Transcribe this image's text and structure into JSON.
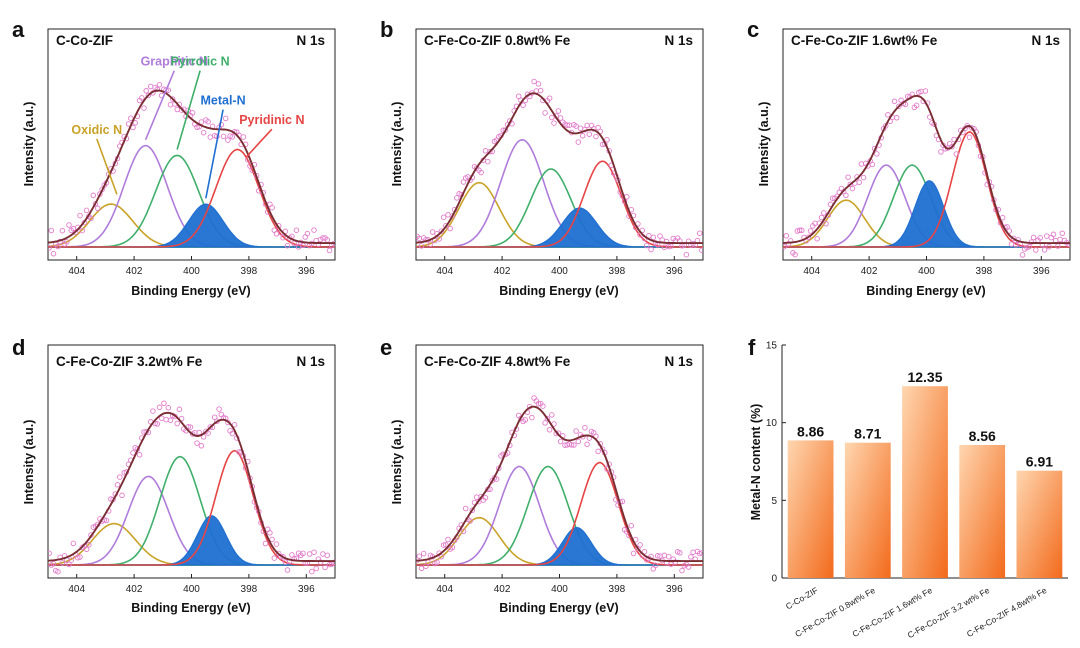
{
  "chart_data": [
    {
      "id": "a",
      "type": "line",
      "panel_label": "a",
      "title": "C-Co-ZIF",
      "tag": "N 1s",
      "xlabel": "Binding Energy (eV)",
      "ylabel": "Intensity (a.u.)",
      "xlim": [
        405,
        395
      ],
      "x_ticks": [
        404,
        402,
        400,
        398,
        396
      ],
      "ylim": [
        0,
        1.0
      ],
      "peaks": [
        {
          "name": "Oxidic N",
          "color": "#C9A227",
          "center": 402.8,
          "height": 0.22,
          "sigma": 0.75
        },
        {
          "name": "Graphitic N",
          "color": "#B07CDB",
          "center": 401.6,
          "height": 0.52,
          "sigma": 0.75
        },
        {
          "name": "Pyrrolic N",
          "color": "#3FAF6B",
          "center": 400.5,
          "height": 0.47,
          "sigma": 0.75
        },
        {
          "name": "Metal-N",
          "color": "#1F6FD1",
          "center": 399.5,
          "height": 0.22,
          "sigma": 0.6,
          "filled": true
        },
        {
          "name": "Pyridinic N",
          "color": "#E64545",
          "center": 398.4,
          "height": 0.5,
          "sigma": 0.75
        }
      ],
      "annotations": [
        {
          "text": "Graphitic N",
          "color": "#B07CDB",
          "at": [
            400.6,
            0.93
          ],
          "to": [
            401.6,
            0.55
          ]
        },
        {
          "text": "Pyrrolic N",
          "color": "#3FAF6B",
          "at": [
            399.7,
            0.93
          ],
          "to": [
            400.5,
            0.5
          ]
        },
        {
          "text": "Metal-N",
          "color": "#1F6FD1",
          "at": [
            398.9,
            0.73
          ],
          "to": [
            399.5,
            0.25
          ]
        },
        {
          "text": "Oxidic N",
          "color": "#C9A227",
          "at": [
            403.3,
            0.58
          ],
          "to": [
            402.6,
            0.27
          ]
        },
        {
          "text": "Pyridinic N",
          "color": "#E64545",
          "at": [
            397.2,
            0.63
          ],
          "to": [
            398.1,
            0.46
          ]
        }
      ]
    },
    {
      "id": "b",
      "type": "line",
      "panel_label": "b",
      "title": "C-Fe-Co-ZIF 0.8wt% Fe",
      "tag": "N 1s",
      "xlabel": "Binding Energy (eV)",
      "ylabel": "Intensity (a.u.)",
      "xlim": [
        405,
        395
      ],
      "x_ticks": [
        404,
        402,
        400,
        398,
        396
      ],
      "ylim": [
        0,
        1.0
      ],
      "peaks": [
        {
          "name": "Oxidic N",
          "color": "#C9A227",
          "center": 402.8,
          "height": 0.33,
          "sigma": 0.7
        },
        {
          "name": "Graphitic N",
          "color": "#B07CDB",
          "center": 401.3,
          "height": 0.55,
          "sigma": 0.75
        },
        {
          "name": "Pyrrolic N",
          "color": "#3FAF6B",
          "center": 400.3,
          "height": 0.4,
          "sigma": 0.7
        },
        {
          "name": "Metal-N",
          "color": "#1F6FD1",
          "center": 399.3,
          "height": 0.2,
          "sigma": 0.6,
          "filled": true
        },
        {
          "name": "Pyridinic N",
          "color": "#E64545",
          "center": 398.5,
          "height": 0.44,
          "sigma": 0.65
        }
      ],
      "annotations": []
    },
    {
      "id": "c",
      "type": "line",
      "panel_label": "c",
      "title": "C-Fe-Co-ZIF 1.6wt% Fe",
      "tag": "N 1s",
      "xlabel": "Binding Energy (eV)",
      "ylabel": "Intensity (a.u.)",
      "xlim": [
        405,
        395
      ],
      "x_ticks": [
        404,
        402,
        400,
        398,
        396
      ],
      "ylim": [
        0,
        1.0
      ],
      "peaks": [
        {
          "name": "Oxidic N",
          "color": "#C9A227",
          "center": 402.8,
          "height": 0.24,
          "sigma": 0.65
        },
        {
          "name": "Graphitic N",
          "color": "#B07CDB",
          "center": 401.4,
          "height": 0.42,
          "sigma": 0.65
        },
        {
          "name": "Pyrrolic N",
          "color": "#3FAF6B",
          "center": 400.5,
          "height": 0.42,
          "sigma": 0.65
        },
        {
          "name": "Metal-N",
          "color": "#1F6FD1",
          "center": 399.9,
          "height": 0.34,
          "sigma": 0.5,
          "filled": true
        },
        {
          "name": "Pyridinic N",
          "color": "#E64545",
          "center": 398.5,
          "height": 0.59,
          "sigma": 0.6
        }
      ],
      "annotations": []
    },
    {
      "id": "d",
      "type": "line",
      "panel_label": "d",
      "title": "C-Fe-Co-ZIF 3.2wt% Fe",
      "tag": "N 1s",
      "xlabel": "Binding Energy (eV)",
      "ylabel": "Intensity (a.u.)",
      "xlim": [
        405,
        395
      ],
      "x_ticks": [
        404,
        402,
        400,
        398,
        396
      ],
      "ylim": [
        0,
        1.0
      ],
      "peaks": [
        {
          "name": "Oxidic N",
          "color": "#C9A227",
          "center": 402.7,
          "height": 0.21,
          "sigma": 0.75
        },
        {
          "name": "Graphitic N",
          "color": "#B07CDB",
          "center": 401.5,
          "height": 0.45,
          "sigma": 0.7
        },
        {
          "name": "Pyrrolic N",
          "color": "#3FAF6B",
          "center": 400.4,
          "height": 0.55,
          "sigma": 0.7
        },
        {
          "name": "Metal-N",
          "color": "#1F6FD1",
          "center": 399.3,
          "height": 0.25,
          "sigma": 0.5,
          "filled": true
        },
        {
          "name": "Pyridinic N",
          "color": "#E64545",
          "center": 398.5,
          "height": 0.58,
          "sigma": 0.65
        }
      ],
      "annotations": []
    },
    {
      "id": "e",
      "type": "line",
      "panel_label": "e",
      "title": "C-Fe-Co-ZIF 4.8wt% Fe",
      "tag": "N 1s",
      "xlabel": "Binding Energy (eV)",
      "ylabel": "Intensity (a.u.)",
      "xlim": [
        405,
        395
      ],
      "x_ticks": [
        404,
        402,
        400,
        398,
        396
      ],
      "ylim": [
        0,
        1.0
      ],
      "peaks": [
        {
          "name": "Oxidic N",
          "color": "#C9A227",
          "center": 402.8,
          "height": 0.24,
          "sigma": 0.7
        },
        {
          "name": "Graphitic N",
          "color": "#B07CDB",
          "center": 401.4,
          "height": 0.5,
          "sigma": 0.7
        },
        {
          "name": "Pyrrolic N",
          "color": "#3FAF6B",
          "center": 400.4,
          "height": 0.5,
          "sigma": 0.7
        },
        {
          "name": "Metal-N",
          "color": "#1F6FD1",
          "center": 399.4,
          "height": 0.19,
          "sigma": 0.5,
          "filled": true
        },
        {
          "name": "Pyridinic N",
          "color": "#E64545",
          "center": 398.6,
          "height": 0.52,
          "sigma": 0.65
        }
      ],
      "annotations": []
    },
    {
      "id": "f",
      "type": "bar",
      "panel_label": "f",
      "categories": [
        "C-Co-ZIF",
        "C-Fe-Co-ZIF 0.8wt% Fe",
        "C-Fe-Co-ZIF 1.6wt% Fe",
        "C-Fe-Co-ZIF 3.2 wt% Fe",
        "C-Fe-Co-ZIF 4.8wt% Fe"
      ],
      "values": [
        8.86,
        8.71,
        12.35,
        8.56,
        6.91
      ],
      "value_labels": [
        "8.86",
        "8.71",
        "12.35",
        "8.56",
        "6.91"
      ],
      "ylabel": "Metal-N content (%)",
      "ylim": [
        0,
        15
      ],
      "y_ticks": [
        0,
        5,
        10,
        15
      ],
      "bar_color": "#F47A2E"
    }
  ]
}
